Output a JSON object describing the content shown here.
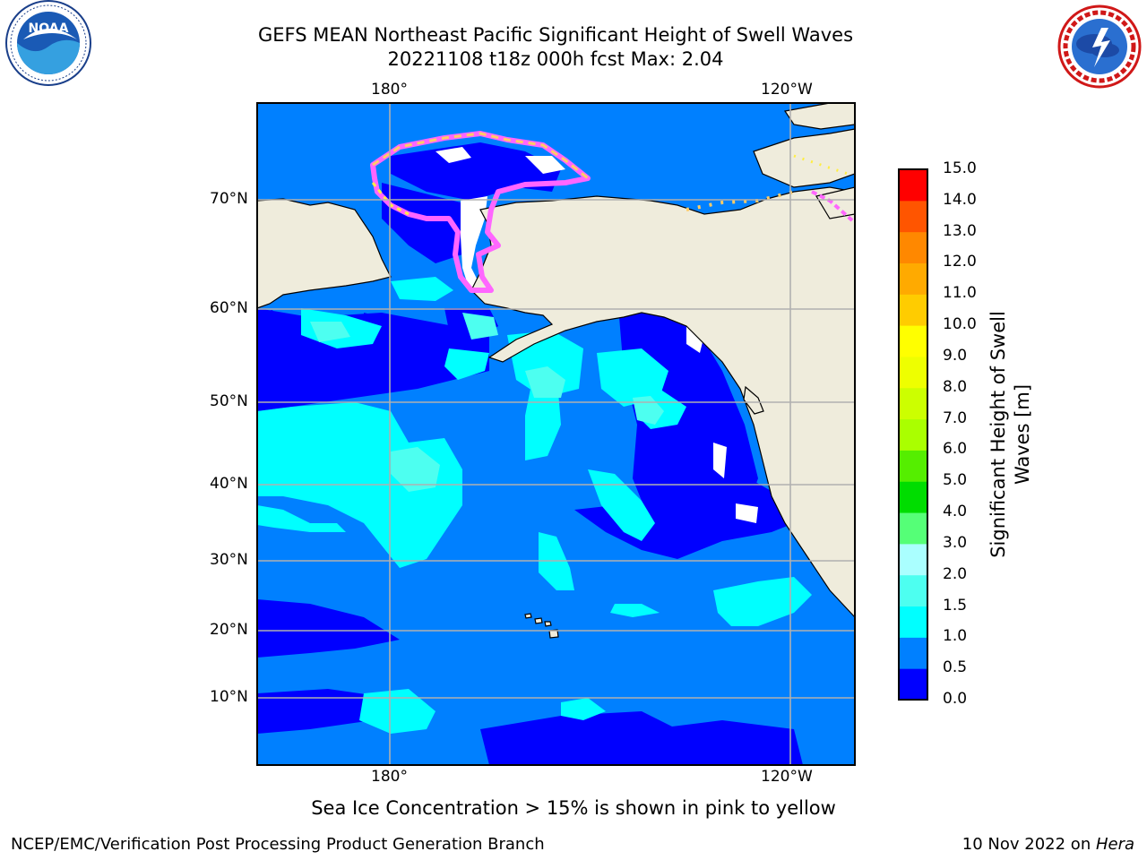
{
  "title": {
    "line1": "GEFS MEAN Northeast Pacific Significant Height of Swell Waves",
    "line2": "20221108 t18z 000h fcst   Max: 2.04"
  },
  "logos": {
    "left": {
      "name": "NOAA",
      "ring_text": "NATIONAL OCEANIC AND ATMOSPHERIC ADMINISTRATION · U.S. DEPARTMENT OF COMMERCE"
    },
    "right": {
      "ring_text": "NATIONAL WEATHER SERVICE"
    }
  },
  "map": {
    "lon_top": [
      "180°",
      "120°W"
    ],
    "lon_bottom": [
      "180°",
      "120°W"
    ],
    "lat_labels": [
      "70°N",
      "60°N",
      "50°N",
      "40°N",
      "30°N",
      "20°N",
      "10°N"
    ],
    "colors": {
      "land": "#efecdc",
      "coast": "#000000",
      "grid": "#b0b0b0",
      "ice": [
        "#ff66ff",
        "#ff99cc",
        "#ffcc66",
        "#ffee44"
      ]
    }
  },
  "colorbar": {
    "ticks": [
      "15.0",
      "14.0",
      "13.0",
      "12.0",
      "11.0",
      "10.0",
      "9.0",
      "8.0",
      "7.0",
      "6.0",
      "5.0",
      "4.0",
      "3.0",
      "2.0",
      "1.5",
      "1.0",
      "0.5",
      "0.0"
    ],
    "bins": [
      {
        "label": "0.0-0.5",
        "color": "#0000ff"
      },
      {
        "label": "0.5-1.0",
        "color": "#0080ff"
      },
      {
        "label": "1.0-1.5",
        "color": "#00ffff"
      },
      {
        "label": "1.5-2.0",
        "color": "#4dfff0"
      },
      {
        "label": "2.0-3.0",
        "color": "#aaffff"
      },
      {
        "label": "3.0-4.0",
        "color": "#55ff77"
      },
      {
        "label": "4.0-5.0",
        "color": "#00dd00"
      },
      {
        "label": "5.0-6.0",
        "color": "#55ee00"
      },
      {
        "label": "6.0-7.0",
        "color": "#aaff00"
      },
      {
        "label": "7.0-8.0",
        "color": "#ccff00"
      },
      {
        "label": "8.0-9.0",
        "color": "#eeff00"
      },
      {
        "label": "9.0-10.0",
        "color": "#ffff00"
      },
      {
        "label": "10.0-11.0",
        "color": "#ffcc00"
      },
      {
        "label": "11.0-12.0",
        "color": "#ffaa00"
      },
      {
        "label": "12.0-13.0",
        "color": "#ff8800"
      },
      {
        "label": "13.0-14.0",
        "color": "#ff5500"
      },
      {
        "label": "14.0-15.0",
        "color": "#ff0000"
      }
    ],
    "label_line1": "Significant Height of Swell",
    "label_line2": "Waves [m]"
  },
  "note": "Sea Ice Concentration > 15% is shown in pink to yellow",
  "footer": {
    "left": "NCEP/EMC/Verification Post Processing Product Generation Branch",
    "date": "10 Nov 2022 on ",
    "machine": "Hera"
  }
}
